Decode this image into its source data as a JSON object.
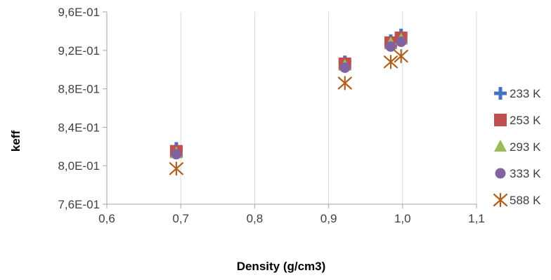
{
  "chart_data": {
    "type": "scatter",
    "title": "",
    "xlabel": "Density (g/cm3)",
    "ylabel": "keff",
    "xlim": [
      0.6,
      1.1
    ],
    "ylim": [
      0.76,
      0.96
    ],
    "x_ticks": [
      0.6,
      0.7,
      0.8,
      0.9,
      1.0,
      1.1
    ],
    "y_ticks": [
      0.76,
      0.8,
      0.84,
      0.88,
      0.92,
      0.96
    ],
    "x_tick_labels": [
      "0,6",
      "0,7",
      "0,8",
      "0,9",
      "1,0",
      "1,1"
    ],
    "y_tick_labels": [
      "7,6E-01",
      "8,0E-01",
      "8,4E-01",
      "8,8E-01",
      "9,2E-01",
      "9,6E-01"
    ],
    "grid": "vertical",
    "legend_position": "right",
    "series": [
      {
        "name": "233 K",
        "marker": "plus",
        "color": "#4472C4",
        "x": [
          0.694,
          0.922,
          0.984,
          0.998
        ],
        "y": [
          0.818,
          0.908,
          0.93,
          0.936
        ]
      },
      {
        "name": "253 K",
        "marker": "square",
        "color": "#C0504D",
        "x": [
          0.694,
          0.922,
          0.984,
          0.998
        ],
        "y": [
          0.815,
          0.906,
          0.928,
          0.933
        ]
      },
      {
        "name": "293 K",
        "marker": "triangle",
        "color": "#9BBB59",
        "x": [
          0.694,
          0.922,
          0.984,
          0.998
        ],
        "y": [
          0.813,
          0.904,
          0.927,
          0.931
        ]
      },
      {
        "name": "333 K",
        "marker": "circle",
        "color": "#8064A2",
        "x": [
          0.694,
          0.922,
          0.984,
          0.998
        ],
        "y": [
          0.812,
          0.902,
          0.924,
          0.929
        ]
      },
      {
        "name": "588 K",
        "marker": "asterisk",
        "color": "#B0601C",
        "x": [
          0.694,
          0.922,
          0.984,
          0.998
        ],
        "y": [
          0.797,
          0.886,
          0.908,
          0.914
        ]
      }
    ]
  }
}
